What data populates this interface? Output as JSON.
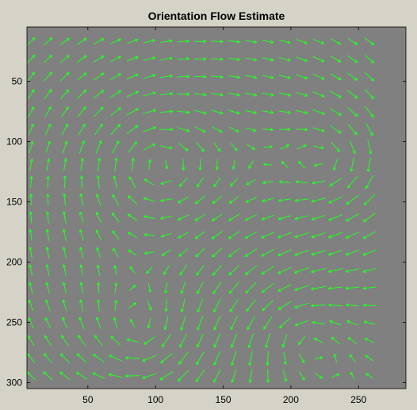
{
  "figure": {
    "title": "Orientation Flow Estimate",
    "background": "#d5d3c8",
    "axes_background": "#808080",
    "arrow_color": "#22ff22"
  },
  "chart_data": {
    "type": "quiver",
    "title": "Orientation Flow Estimate",
    "xlabel": "",
    "ylabel": "",
    "xlim": [
      5,
      285
    ],
    "ylim": [
      305,
      5
    ],
    "y_axis_reversed": true,
    "x_ticks": [
      50,
      100,
      150,
      200,
      250
    ],
    "y_ticks": [
      50,
      100,
      150,
      200,
      250,
      300
    ],
    "grid": "off",
    "legend": "none",
    "field": {
      "x_start": 8,
      "x_step": 12.5,
      "nx": 21,
      "y_start": 17,
      "y_step": 14.6,
      "ny": 20,
      "vortices": [
        {
          "x": 100,
          "y": 118,
          "sign": 1
        },
        {
          "x": 230,
          "y": 118,
          "sign": 1
        },
        {
          "x": 90,
          "y": 260,
          "sign": 1
        },
        {
          "x": 205,
          "y": 260,
          "sign": -1
        }
      ]
    }
  }
}
